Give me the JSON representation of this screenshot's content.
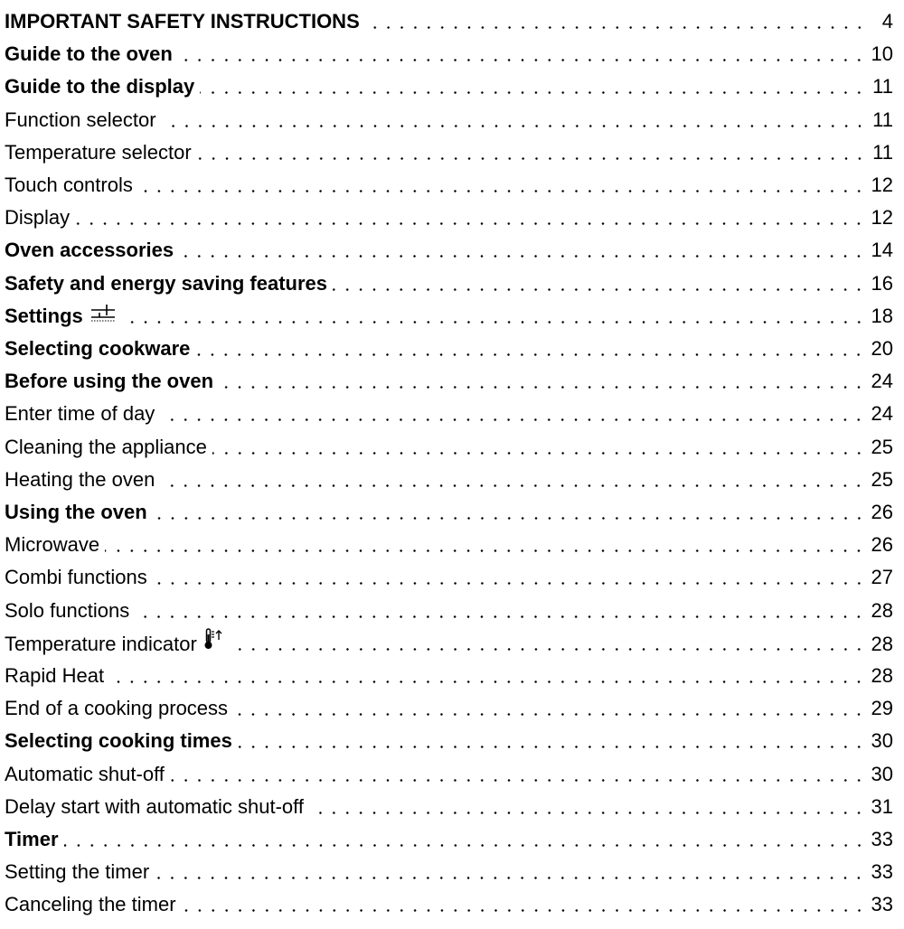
{
  "toc": {
    "entries": [
      {
        "label": "IMPORTANT SAFETY INSTRUCTIONS",
        "page": "4",
        "level": 1
      },
      {
        "label": "Guide to the oven",
        "page": "10",
        "level": 1
      },
      {
        "label": "Guide to the display",
        "page": "11",
        "level": 1
      },
      {
        "label": "Function selector",
        "page": "11",
        "level": 2
      },
      {
        "label": "Temperature selector",
        "page": "11",
        "level": 2
      },
      {
        "label": "Touch controls",
        "page": "12",
        "level": 2
      },
      {
        "label": "Display",
        "page": "12",
        "level": 2
      },
      {
        "label": "Oven accessories",
        "page": "14",
        "level": 1
      },
      {
        "label": "Safety and energy saving features",
        "page": "16",
        "level": 1
      },
      {
        "label": "Settings",
        "page": "18",
        "level": 1,
        "icon": "settings-sliders-icon"
      },
      {
        "label": "Selecting cookware",
        "page": "20",
        "level": 1
      },
      {
        "label": "Before using the oven",
        "page": "24",
        "level": 1
      },
      {
        "label": "Enter time of day",
        "page": "24",
        "level": 2
      },
      {
        "label": "Cleaning the appliance",
        "page": "25",
        "level": 2
      },
      {
        "label": "Heating the oven",
        "page": "25",
        "level": 2
      },
      {
        "label": "Using the oven",
        "page": "26",
        "level": 1
      },
      {
        "label": "Microwave",
        "page": "26",
        "level": 2
      },
      {
        "label": "Combi functions",
        "page": "27",
        "level": 2
      },
      {
        "label": "Solo functions",
        "page": "28",
        "level": 2
      },
      {
        "label": "Temperature indicator",
        "page": "28",
        "level": 2,
        "icon": "thermometer-rising-icon"
      },
      {
        "label": "Rapid Heat",
        "page": "28",
        "level": 2
      },
      {
        "label": "End of a cooking process",
        "page": "29",
        "level": 2
      },
      {
        "label": "Selecting cooking times",
        "page": "30",
        "level": 1
      },
      {
        "label": "Automatic shut-off",
        "page": "30",
        "level": 2
      },
      {
        "label": "Delay start with automatic shut-off",
        "page": "31",
        "level": 2
      },
      {
        "label": "Timer",
        "page": "33",
        "level": 1
      },
      {
        "label": "Setting the timer",
        "page": "33",
        "level": 2
      },
      {
        "label": "Canceling the timer",
        "page": "33",
        "level": 2
      }
    ]
  }
}
